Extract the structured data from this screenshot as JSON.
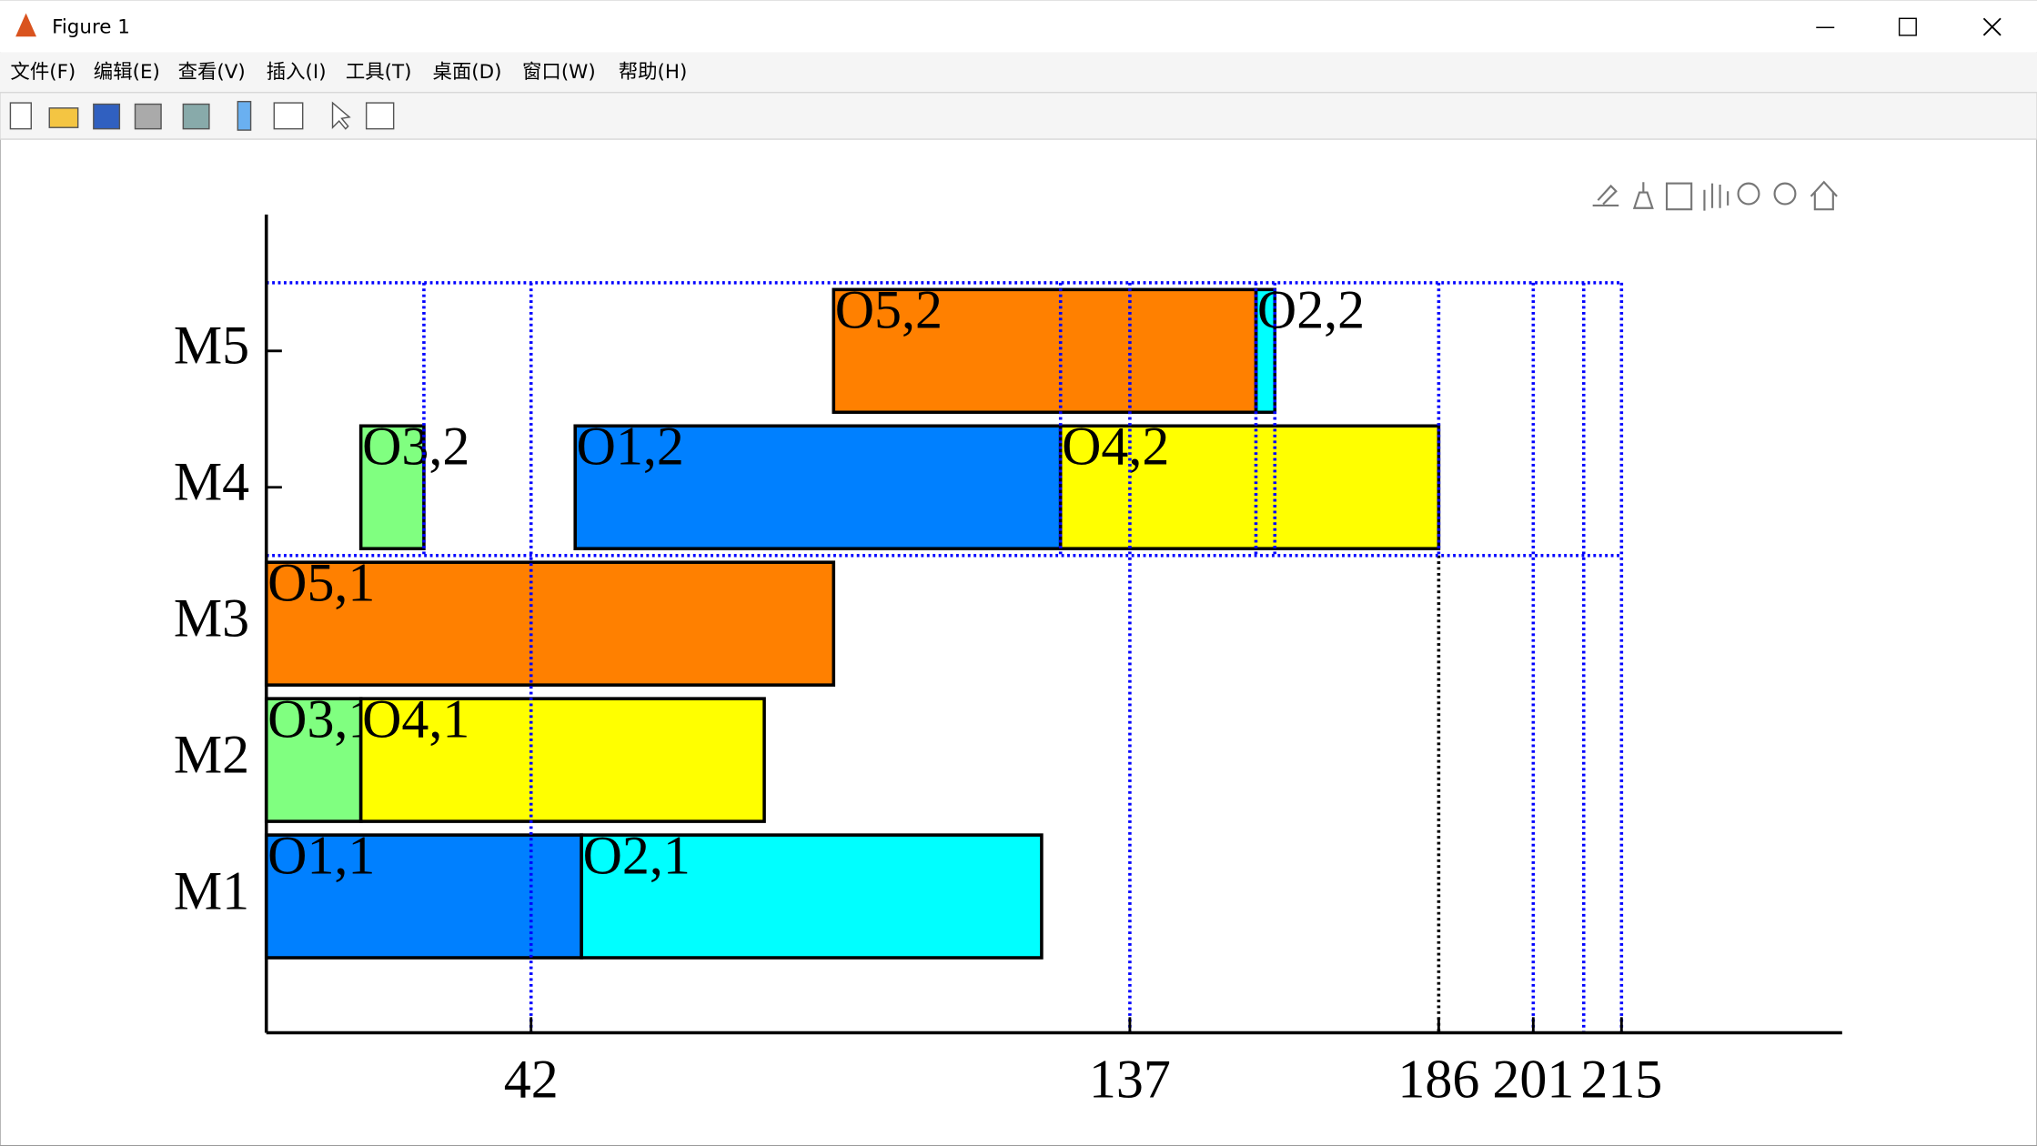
{
  "window": {
    "title": "Figure 1",
    "menu": [
      "文件(F)",
      "编辑(E)",
      "查看(V)",
      "插入(I)",
      "工具(T)",
      "桌面(D)",
      "窗口(W)",
      "帮助(H)"
    ]
  },
  "chart_data": {
    "type": "gantt",
    "rows": [
      {
        "name": "M1",
        "tasks": [
          {
            "label": "O1,1",
            "start": 0,
            "end": 50,
            "color": "#0080ff"
          },
          {
            "label": "O2,1",
            "start": 50,
            "end": 123,
            "color": "#00ffff"
          }
        ]
      },
      {
        "name": "M2",
        "tasks": [
          {
            "label": "O3,1",
            "start": 0,
            "end": 15,
            "color": "#80ff80"
          },
          {
            "label": "O4,1",
            "start": 15,
            "end": 79,
            "color": "#ffff00"
          }
        ]
      },
      {
        "name": "M3",
        "tasks": [
          {
            "label": "O5,1",
            "start": 0,
            "end": 90,
            "color": "#ff8000"
          }
        ]
      },
      {
        "name": "M4",
        "tasks": [
          {
            "label": "O1,2",
            "start": 49,
            "end": 126,
            "color": "#0080ff"
          },
          {
            "label": "O3,2",
            "start": 15,
            "end": 25,
            "color": "#80ff80"
          },
          {
            "label": "O4,2",
            "start": 126,
            "end": 186,
            "color": "#ffff00"
          }
        ]
      },
      {
        "name": "M5",
        "tasks": [
          {
            "label": "O2,2",
            "start": 157,
            "end": 160,
            "color": "#00ffff"
          },
          {
            "label": "O5,2",
            "start": 90,
            "end": 157,
            "color": "#ff8000"
          }
        ]
      }
    ],
    "xlim": [
      0,
      250
    ],
    "ylim": [
      0,
      6
    ],
    "xticks": [
      42,
      137,
      186,
      201,
      215
    ],
    "full_vlines": [
      42,
      137,
      201,
      209,
      215
    ],
    "band_vlines": [
      25,
      126,
      157,
      160,
      186
    ],
    "black_vline": 186,
    "hband": [
      3.5,
      5.5
    ],
    "line_color": "#0000ff"
  }
}
